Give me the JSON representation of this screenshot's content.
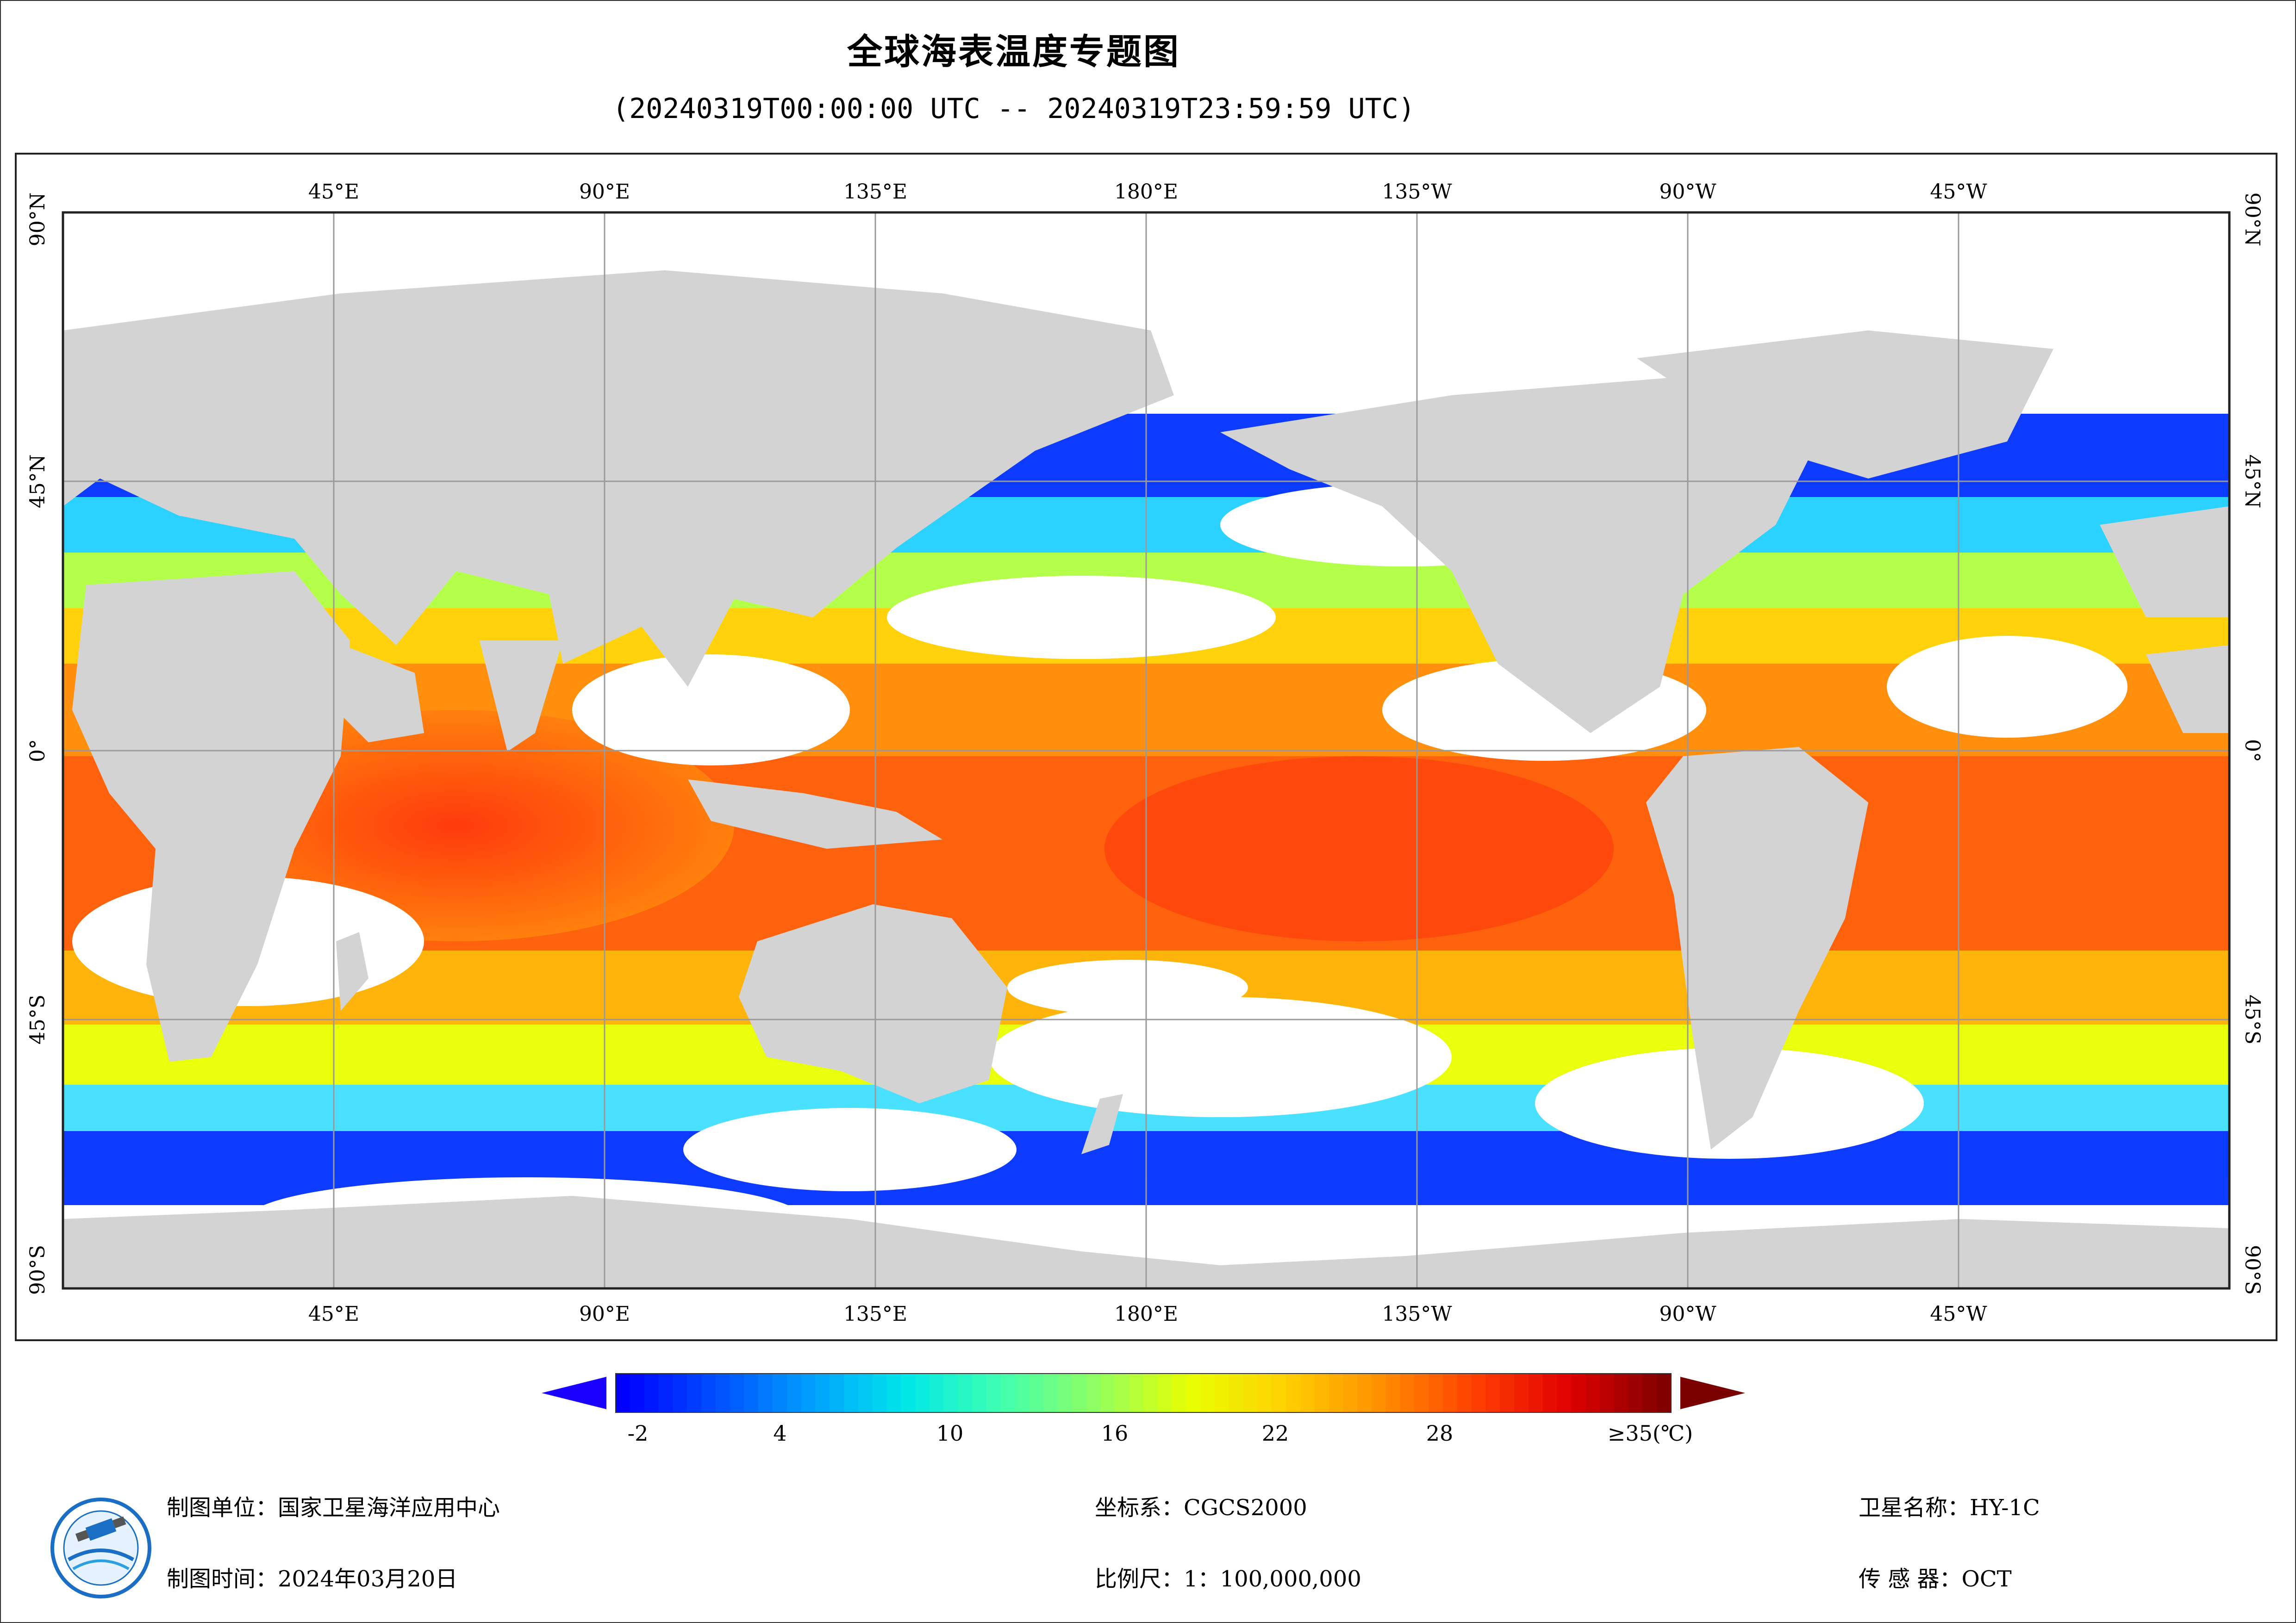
{
  "header": {
    "title": "全球海表温度专题图",
    "subtitle": "(20240319T00:00:00 UTC -- 20240319T23:59:59 UTC)"
  },
  "map": {
    "top_lon_labels": [
      "45°E",
      "90°E",
      "135°E",
      "180°E",
      "135°W",
      "90°W",
      "45°W"
    ],
    "bottom_lon_labels": [
      "45°E",
      "90°E",
      "135°E",
      "180°E",
      "135°W",
      "90°W",
      "45°W"
    ],
    "left_lat_labels": [
      "90°N",
      "45°N",
      "0°",
      "45°S",
      "90°S"
    ],
    "right_lat_labels": [
      "90°N",
      "45°N",
      "0°",
      "45°S",
      "90°S"
    ],
    "colors": {
      "land": "#d3d3d3",
      "cloud": "#ffffff",
      "grid": "#9a9a9a",
      "cold": "#0000ff",
      "warm": "#ff3c00"
    }
  },
  "legend": {
    "ticks": [
      "-2",
      "4",
      "10",
      "16",
      "22",
      "28",
      "≥35(℃)"
    ],
    "min_arrow_color": "#1a00ff",
    "max_arrow_color": "#7a0000",
    "stops": [
      "#0000ff",
      "#0050ff",
      "#00a0ff",
      "#00e8e8",
      "#40ffb0",
      "#90ff60",
      "#e8ff00",
      "#ffd000",
      "#ff9000",
      "#ff4000",
      "#e00000",
      "#800000"
    ]
  },
  "footer": {
    "org_label": "制图单位：国家卫星海洋应用中心",
    "date_label": "制图时间：2024年03月20日",
    "crs_label": "坐标系：CGCS2000",
    "scale_label": "比例尺：1：100,000,000",
    "satellite_label": "卫星名称：HY-1C",
    "sensor_label": "传 感 器：OCT"
  }
}
